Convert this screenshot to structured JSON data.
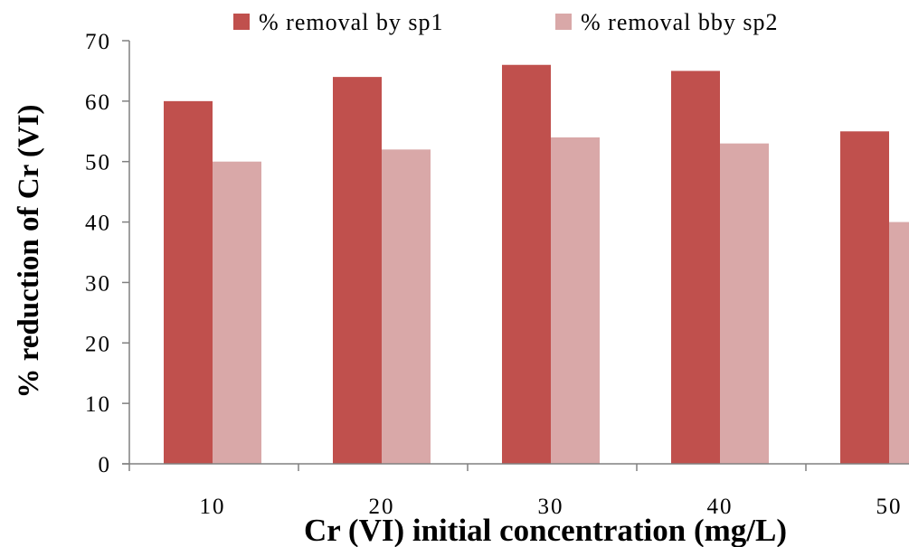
{
  "chart_data": {
    "type": "bar",
    "title": "",
    "xlabel": "Cr (VI) initial concentration (mg/L)",
    "ylabel": "% reduction of Cr (VI)",
    "categories": [
      "10",
      "20",
      "30",
      "40",
      "50"
    ],
    "series": [
      {
        "name": "% removal by sp1",
        "color": "#c0504d",
        "values": [
          60,
          64,
          66,
          65,
          55
        ]
      },
      {
        "name": "% removal bby sp2",
        "color": "#d9a8a8",
        "values": [
          50,
          52,
          54,
          53,
          40
        ]
      }
    ],
    "ylim": [
      0,
      70
    ],
    "yticks": [
      "0",
      "10",
      "20",
      "30",
      "40",
      "50",
      "60",
      "70"
    ],
    "grid": false,
    "legend": "top"
  }
}
